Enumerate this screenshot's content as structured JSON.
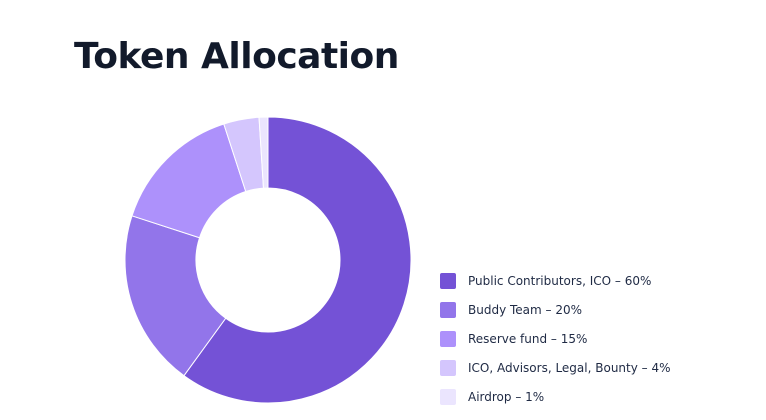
{
  "title": "Token Allocation",
  "chart_data": {
    "type": "pie",
    "title": "Token Allocation",
    "donut": true,
    "legend_position": "right",
    "slices": [
      {
        "label": "Public Contributors, ICO – 60%",
        "value": 60,
        "color": "#7452d6"
      },
      {
        "label": "Buddy Team – 20%",
        "value": 20,
        "color": "#9275ea"
      },
      {
        "label": "Reserve fund – 15%",
        "value": 15,
        "color": "#ad91fb"
      },
      {
        "label": "ICO, Advisors, Legal, Bounty – 4%",
        "value": 4,
        "color": "#d4c6fd"
      },
      {
        "label": "Airdrop – 1%",
        "value": 1,
        "color": "#ebe5fe"
      }
    ]
  }
}
